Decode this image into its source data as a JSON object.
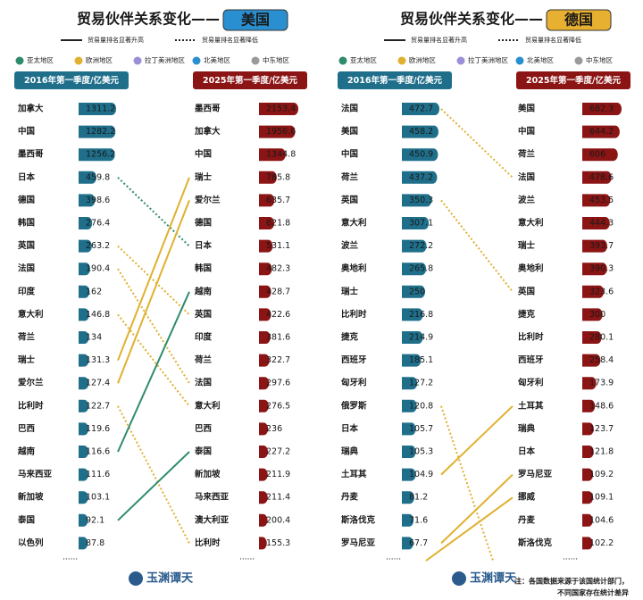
{
  "chart_data": [
    {
      "type": "rank_bars",
      "title": "贸易伙伴关系变化——",
      "title_highlight": "美国",
      "highlight_color": "#2a8fd0",
      "left": {
        "title": "2016年第一季度/亿美元",
        "color": "#1f6f8b",
        "categories": [
          "加拿大",
          "中国",
          "墨西哥",
          "日本",
          "德国",
          "韩国",
          "英国",
          "法国",
          "印度",
          "意大利",
          "荷兰",
          "瑞士",
          "爱尔兰",
          "比利时",
          "巴西",
          "越南",
          "马来西亚",
          "新加坡",
          "泰国",
          "以色列"
        ],
        "values": [
          1311.2,
          1282.2,
          1256.2,
          459.8,
          398.6,
          276.4,
          263.2,
          190.4,
          162,
          146.8,
          134,
          131.3,
          127.4,
          122.7,
          119.6,
          116.6,
          111.6,
          103.1,
          92.1,
          87.8
        ]
      },
      "right": {
        "title": "2025年第一季度/亿美元",
        "color": "#8b1414",
        "categories": [
          "墨西哥",
          "加拿大",
          "中国",
          "瑞士",
          "爱尔兰",
          "德国",
          "日本",
          "韩国",
          "越南",
          "英国",
          "印度",
          "荷兰",
          "法国",
          "意大利",
          "巴西",
          "泰国",
          "新加坡",
          "马来西亚",
          "澳大利亚",
          "比利时"
        ],
        "values": [
          2153.4,
          1956.6,
          1344.8,
          785.8,
          635.7,
          621.8,
          531.1,
          482.3,
          428.7,
          422.6,
          381.6,
          322.7,
          297.6,
          276.5,
          236,
          227.2,
          211.9,
          211.4,
          200.4,
          155.3
        ]
      },
      "links": [
        {
          "country": "日本",
          "region": "亚太地区"
        },
        {
          "country": "英国",
          "region": "欧洲地区"
        },
        {
          "country": "法国",
          "region": "欧洲地区"
        },
        {
          "country": "意大利",
          "region": "欧洲地区"
        },
        {
          "country": "瑞士",
          "region": "欧洲地区"
        },
        {
          "country": "爱尔兰",
          "region": "欧洲地区"
        },
        {
          "country": "比利时",
          "region": "欧洲地区"
        },
        {
          "country": "越南",
          "region": "亚太地区"
        },
        {
          "country": "泰国",
          "region": "亚太地区"
        }
      ]
    },
    {
      "type": "rank_bars",
      "title": "贸易伙伴关系变化——",
      "title_highlight": "德国",
      "highlight_color": "#e8b030",
      "left": {
        "title": "2016年第一季度/亿美元",
        "color": "#1f6f8b",
        "categories": [
          "法国",
          "美国",
          "中国",
          "荷兰",
          "英国",
          "意大利",
          "波兰",
          "奥地利",
          "瑞士",
          "比利时",
          "捷克",
          "西班牙",
          "匈牙利",
          "俄罗斯",
          "日本",
          "瑞典",
          "土耳其",
          "丹麦",
          "斯洛伐克",
          "罗马尼亚"
        ],
        "values": [
          472.7,
          458.2,
          450.9,
          437.2,
          350.3,
          307.1,
          272.2,
          265.8,
          250,
          216.8,
          214.9,
          185.1,
          127.2,
          120.8,
          105.7,
          105.3,
          104.9,
          81.2,
          71.6,
          67.7
        ]
      },
      "right": {
        "title": "2025年第一季度/亿美元",
        "color": "#8b1414",
        "categories": [
          "美国",
          "中国",
          "荷兰",
          "法国",
          "波兰",
          "意大利",
          "瑞士",
          "奥地利",
          "英国",
          "捷克",
          "比利时",
          "西班牙",
          "匈牙利",
          "土耳其",
          "瑞典",
          "日本",
          "罗马尼亚",
          "挪威",
          "丹麦",
          "斯洛伐克"
        ],
        "values": [
          682.3,
          644.2,
          606,
          478.6,
          453.5,
          444.3,
          393.7,
          390.3,
          323.6,
          300,
          280.1,
          258.4,
          173.9,
          148.6,
          123.7,
          121.8,
          109.2,
          109.1,
          104.6,
          102.2
        ]
      },
      "links": [
        {
          "country": "法国",
          "region": "欧洲地区"
        },
        {
          "country": "英国",
          "region": "欧洲地区"
        },
        {
          "country": "俄罗斯",
          "region": "欧洲地区"
        },
        {
          "country": "土耳其",
          "region": "欧洲地区"
        },
        {
          "country": "罗马尼亚",
          "region": "欧洲地区"
        },
        {
          "country": "挪威",
          "region": "欧洲地区"
        }
      ]
    }
  ],
  "line_legend": [
    {
      "label": "贸易量排名显著升高",
      "style": "solid"
    },
    {
      "label": "贸易量排名显著降低",
      "style": "dotted"
    }
  ],
  "regions": [
    {
      "name": "亚太地区",
      "color": "#2e8b6e"
    },
    {
      "name": "欧洲地区",
      "color": "#e0b030"
    },
    {
      "name": "拉丁美洲地区",
      "color": "#9b8fd8"
    },
    {
      "name": "北美地区",
      "color": "#2a8fd0"
    },
    {
      "name": "中东地区",
      "color": "#9a9a9a"
    }
  ],
  "ellipsis": "......",
  "brand": "玉渊谭天",
  "note": [
    "注：各国数据来源于该国统计部门，",
    "不同国家存在统计差异"
  ]
}
